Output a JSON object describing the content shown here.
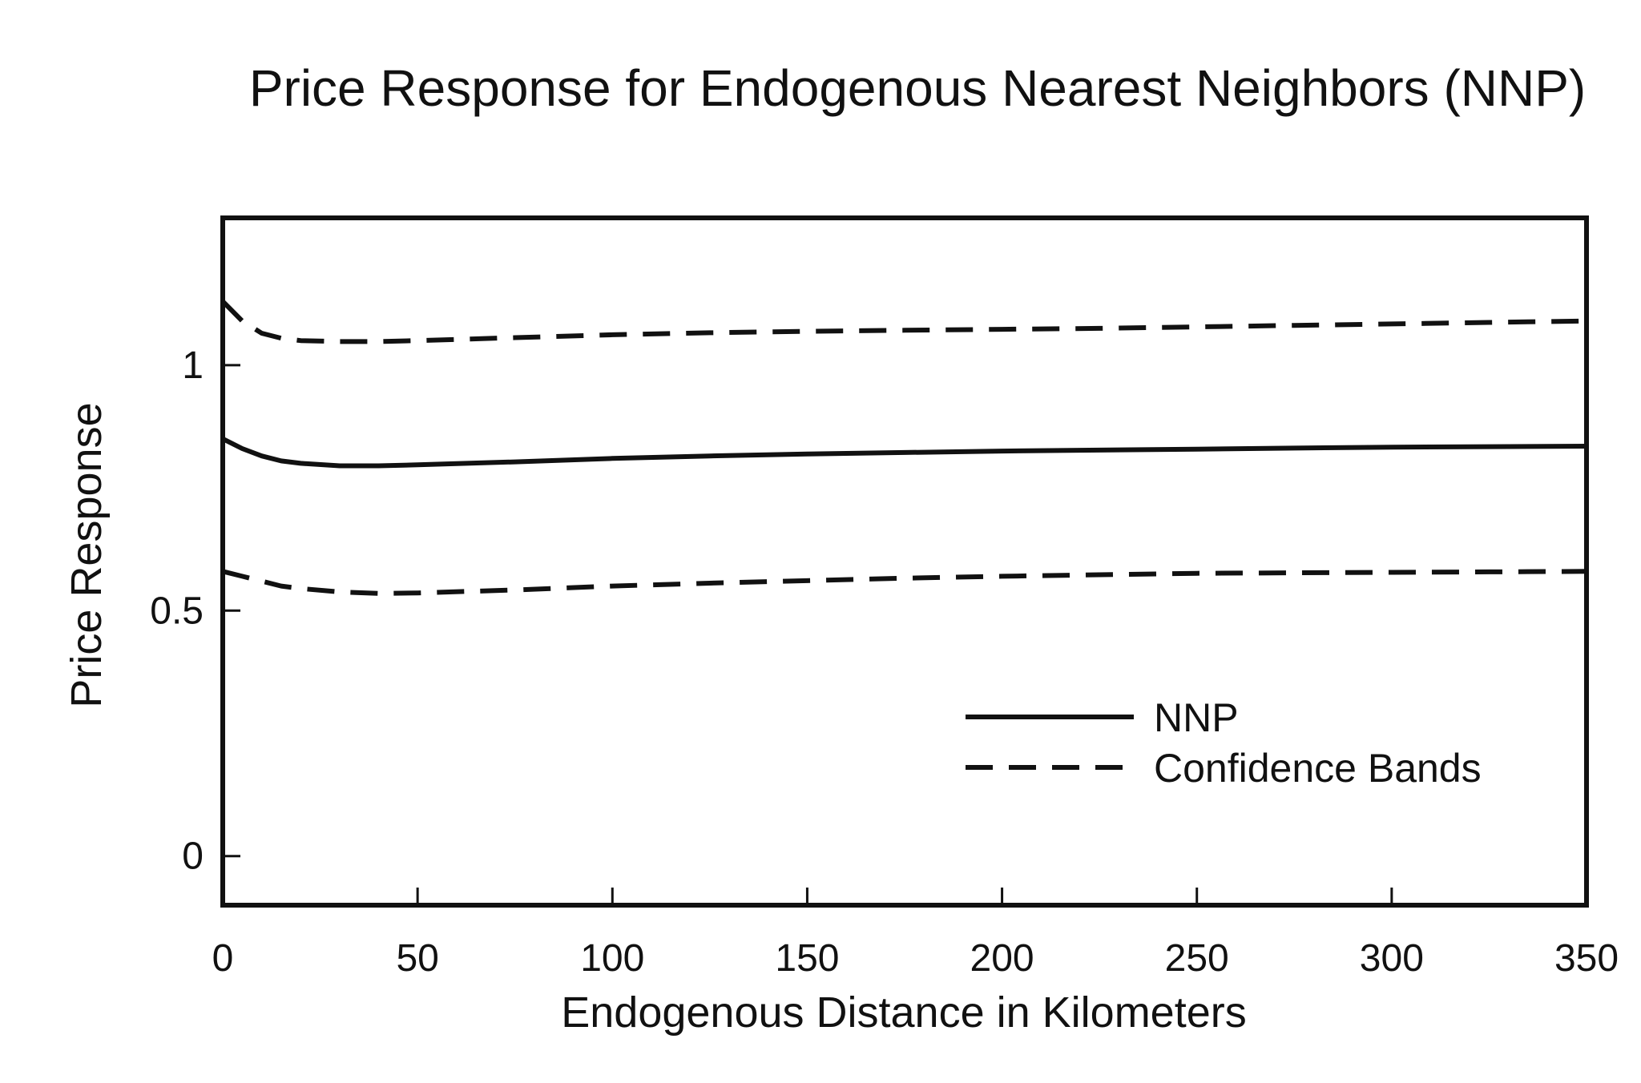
{
  "chart_data": {
    "type": "line",
    "title": "Price Response for Endogenous Nearest Neighbors (NNP)",
    "xlabel": "Endogenous Distance in Kilometers",
    "ylabel": "Price Response",
    "xlim": [
      0,
      350
    ],
    "ylim": [
      -0.1,
      1.3
    ],
    "x_ticks": [
      0,
      50,
      100,
      150,
      200,
      250,
      300,
      350
    ],
    "x_tick_labels": [
      "0",
      "50",
      "100",
      "150",
      "200",
      "250",
      "300",
      "350"
    ],
    "y_ticks": [
      0,
      0.5,
      1
    ],
    "y_tick_labels": [
      "0",
      "0.5",
      "1"
    ],
    "grid": false,
    "legend_position": "lower-right",
    "x": [
      0,
      5,
      10,
      15,
      20,
      30,
      40,
      50,
      75,
      100,
      125,
      150,
      175,
      200,
      225,
      250,
      275,
      300,
      325,
      350
    ],
    "series": [
      {
        "name": "NNP",
        "style": "solid",
        "values": [
          0.85,
          0.83,
          0.815,
          0.805,
          0.8,
          0.795,
          0.795,
          0.797,
          0.803,
          0.81,
          0.815,
          0.819,
          0.822,
          0.825,
          0.827,
          0.829,
          0.831,
          0.833,
          0.834,
          0.835
        ]
      },
      {
        "name": "Confidence Bands",
        "style": "dashed",
        "values": [
          1.13,
          1.09,
          1.065,
          1.055,
          1.05,
          1.048,
          1.048,
          1.05,
          1.056,
          1.062,
          1.066,
          1.069,
          1.071,
          1.073,
          1.075,
          1.078,
          1.081,
          1.084,
          1.087,
          1.09
        ]
      },
      {
        "name": "",
        "style": "dashed",
        "values": [
          0.58,
          0.57,
          0.56,
          0.55,
          0.545,
          0.538,
          0.535,
          0.536,
          0.542,
          0.55,
          0.556,
          0.561,
          0.566,
          0.57,
          0.573,
          0.576,
          0.577,
          0.578,
          0.579,
          0.58
        ]
      }
    ],
    "legend": [
      {
        "label": "NNP",
        "style": "solid"
      },
      {
        "label": "Confidence Bands",
        "style": "dashed"
      }
    ]
  }
}
